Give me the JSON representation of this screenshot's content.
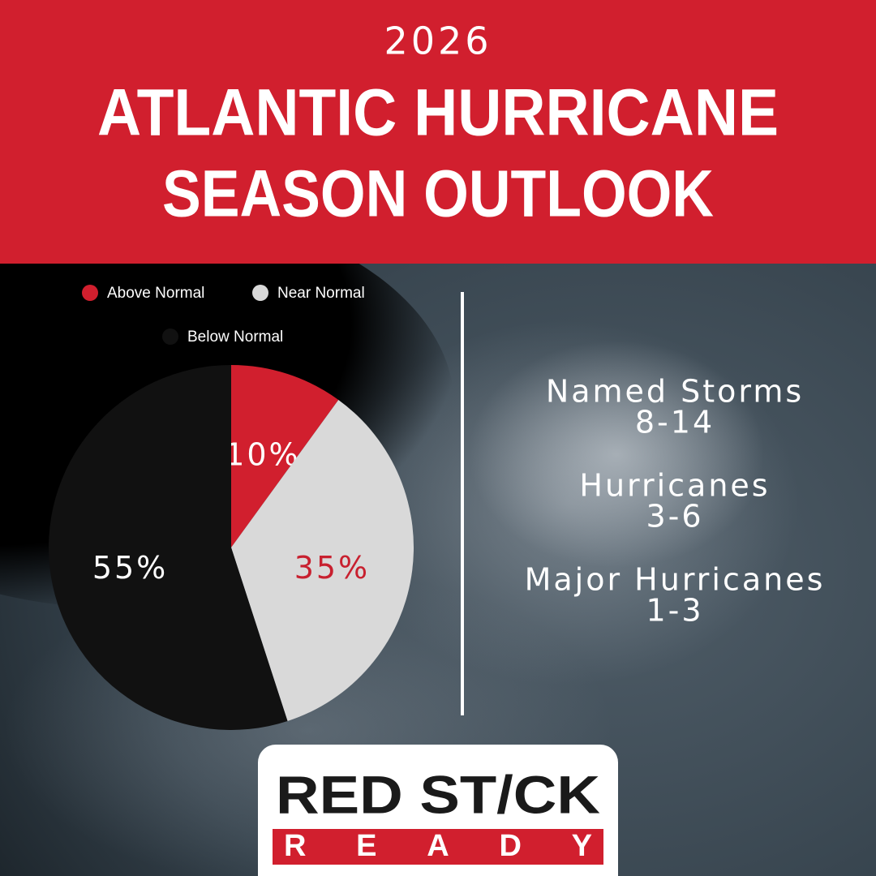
{
  "header": {
    "year": "2026",
    "title_lines": [
      "ATLANTIC HURRICANE",
      "SEASON OUTLOOK"
    ]
  },
  "chart_data": {
    "type": "pie",
    "categories": [
      "Above Normal",
      "Near Normal",
      "Below Normal"
    ],
    "values": [
      10,
      35,
      55
    ],
    "value_labels": [
      "10%",
      "35%",
      "55%"
    ],
    "colors": [
      "#d11f2e",
      "#d9d9d9",
      "#111111"
    ],
    "label_colors": [
      "#ffffff",
      "#c8202f",
      "#ffffff"
    ]
  },
  "stats": [
    {
      "label": "Named Storms",
      "range": "8-14"
    },
    {
      "label": "Hurricanes",
      "range": "3-6"
    },
    {
      "label": "Major Hurricanes",
      "range": "1-3"
    }
  ],
  "logo": {
    "top": "RED ST/CK",
    "bottom": "READY"
  }
}
